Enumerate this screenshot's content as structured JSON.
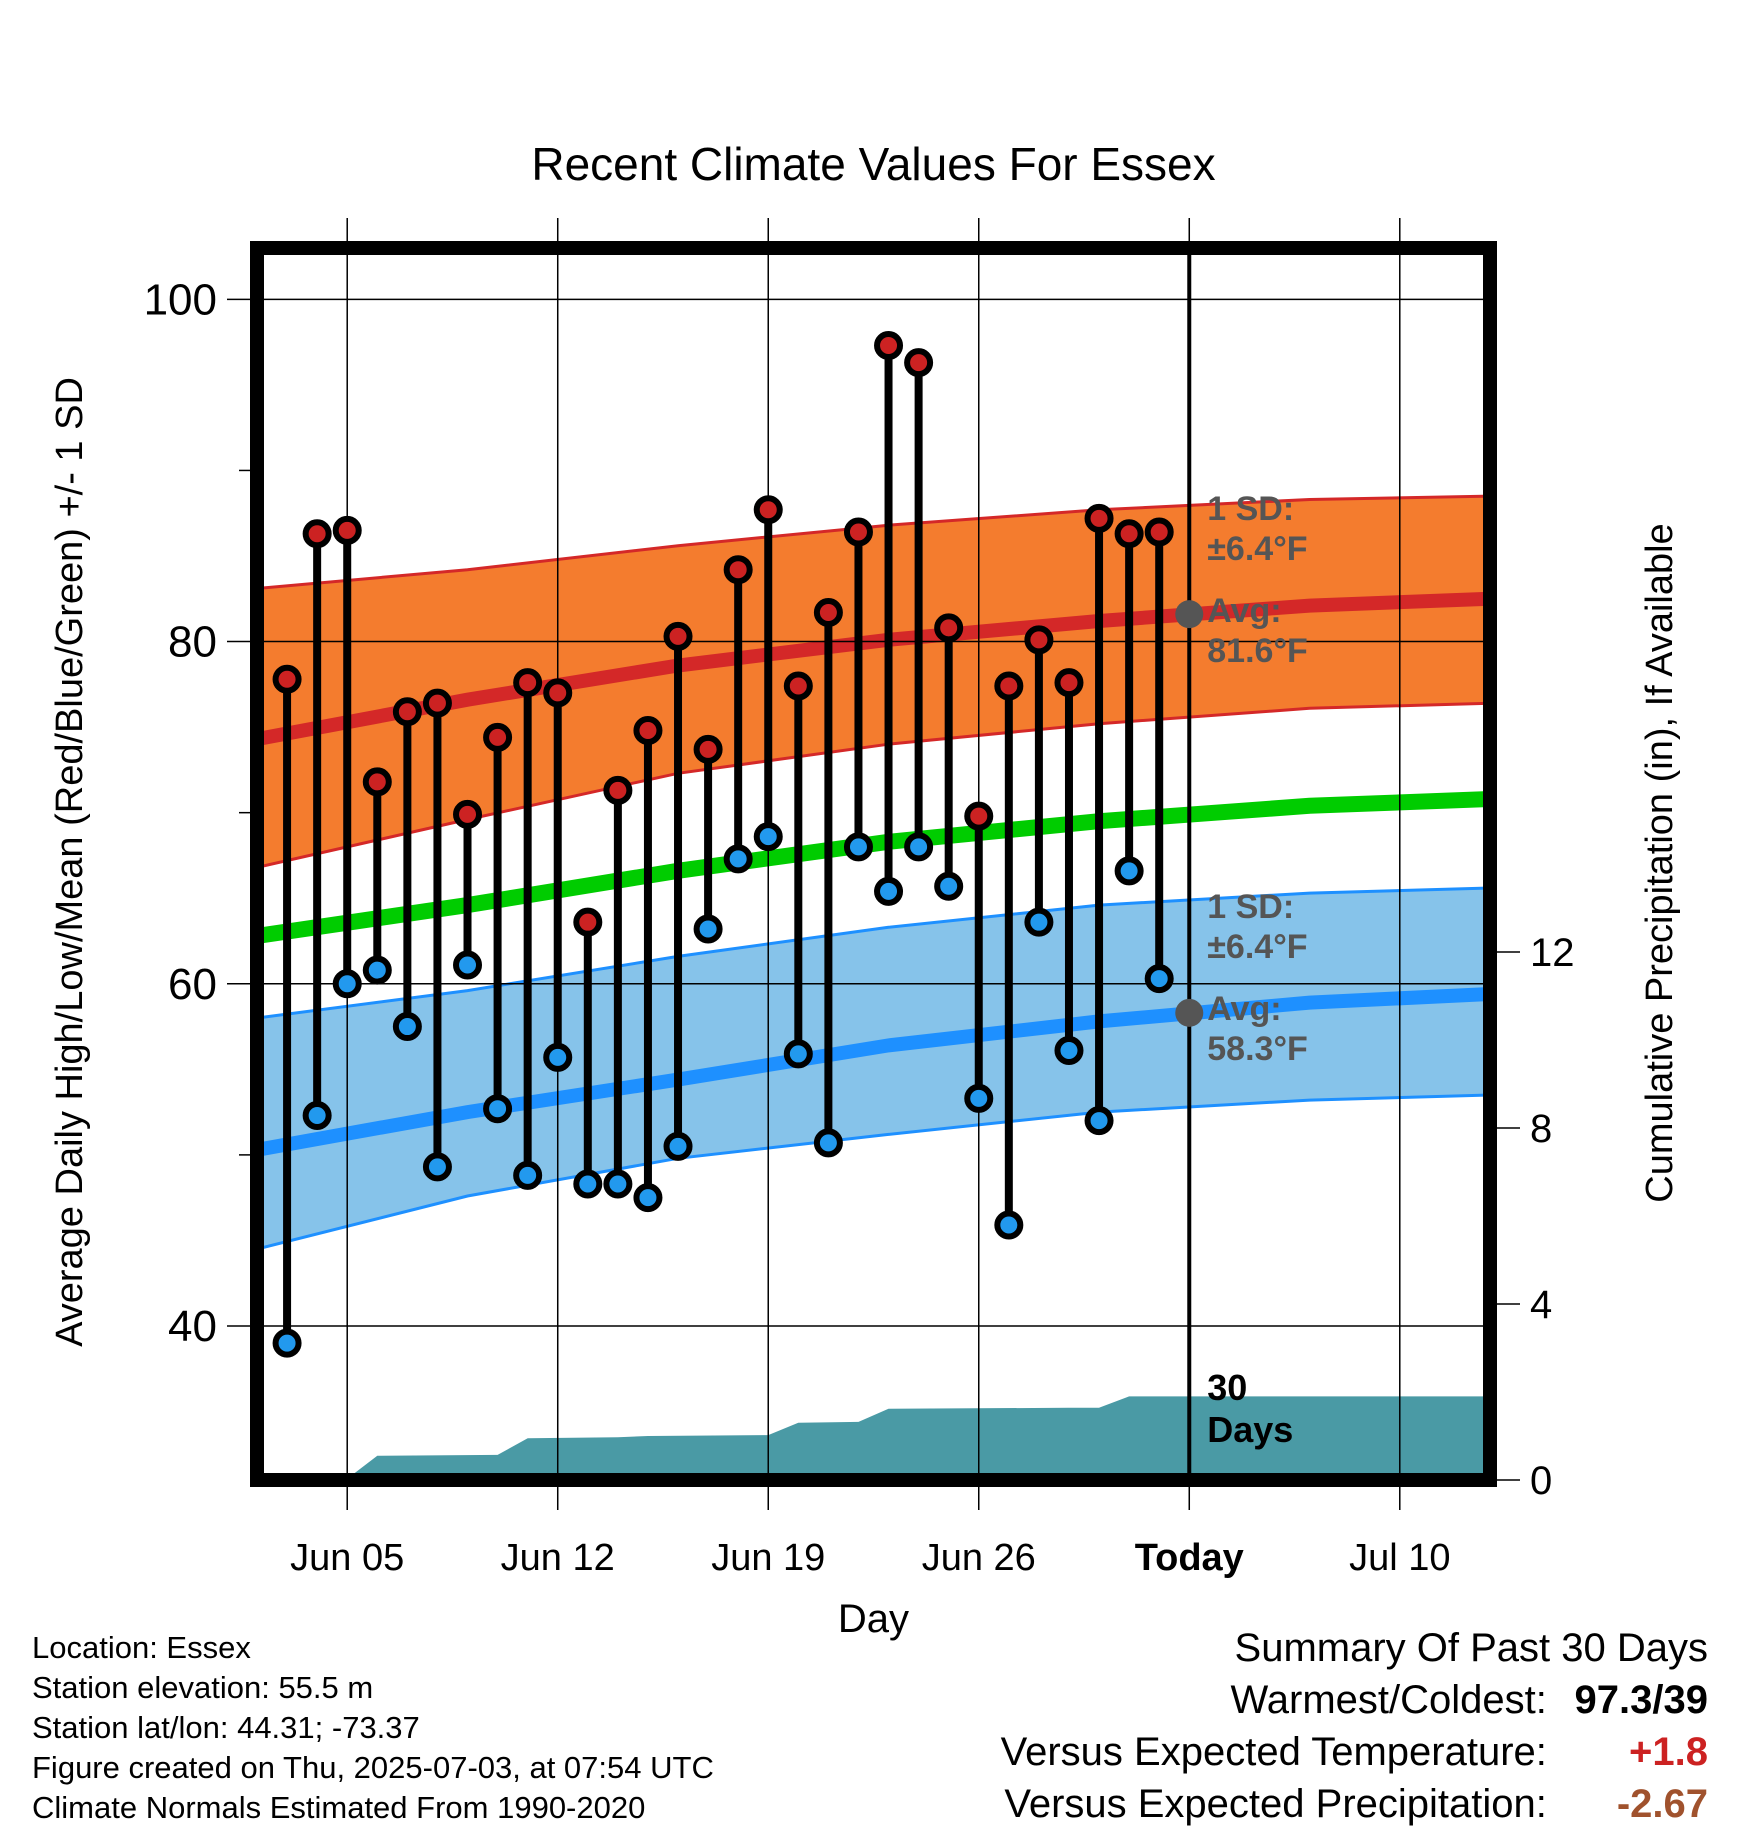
{
  "chart_data": {
    "type": "line",
    "title": "Recent Climate Values For Essex",
    "xlabel": "Day",
    "ylabel": "Average Daily High/Low/Mean (Red/Blue/Green) +/- 1 SD",
    "y2label": "Cumulative Precipitation (in), If Available",
    "x_range": [
      "2025-06-02",
      "2025-07-13"
    ],
    "ylim": [
      31,
      103
    ],
    "y2lim": [
      0,
      28
    ],
    "x_ticks": [
      {
        "date": "2025-06-05",
        "label": "Jun 05"
      },
      {
        "date": "2025-06-12",
        "label": "Jun 12"
      },
      {
        "date": "2025-06-19",
        "label": "Jun 19"
      },
      {
        "date": "2025-06-26",
        "label": "Jun 26"
      },
      {
        "date": "2025-07-03",
        "label": "Today"
      },
      {
        "date": "2025-07-10",
        "label": "Jul 10"
      }
    ],
    "y_ticks": [
      40,
      60,
      80,
      100
    ],
    "y2_ticks": [
      0,
      4,
      8,
      12
    ],
    "today": "2025-07-03",
    "normals": {
      "dates": [
        "2025-06-02",
        "2025-06-09",
        "2025-06-16",
        "2025-06-23",
        "2025-06-30",
        "2025-07-07",
        "2025-07-13"
      ],
      "high_mean": [
        74.3,
        76.6,
        78.6,
        80.1,
        81.2,
        82.1,
        82.5
      ],
      "high_sd_upper": [
        83.1,
        84.2,
        85.6,
        86.8,
        87.7,
        88.3,
        88.5
      ],
      "high_sd_lower": [
        66.8,
        69.6,
        72.3,
        74.0,
        75.2,
        76.1,
        76.4
      ],
      "low_mean": [
        50.3,
        52.5,
        54.4,
        56.4,
        57.8,
        58.9,
        59.4
      ],
      "low_sd_upper": [
        58.0,
        59.6,
        61.6,
        63.3,
        64.6,
        65.3,
        65.6
      ],
      "low_sd_lower": [
        44.5,
        47.6,
        49.8,
        51.2,
        52.5,
        53.2,
        53.5
      ],
      "mean": [
        62.8,
        64.6,
        66.6,
        68.3,
        69.5,
        70.4,
        70.8
      ]
    },
    "daily": {
      "dates": [
        "2025-06-03",
        "2025-06-04",
        "2025-06-05",
        "2025-06-06",
        "2025-06-07",
        "2025-06-08",
        "2025-06-09",
        "2025-06-10",
        "2025-06-11",
        "2025-06-12",
        "2025-06-13",
        "2025-06-14",
        "2025-06-15",
        "2025-06-16",
        "2025-06-17",
        "2025-06-18",
        "2025-06-19",
        "2025-06-20",
        "2025-06-21",
        "2025-06-22",
        "2025-06-23",
        "2025-06-24",
        "2025-06-25",
        "2025-06-26",
        "2025-06-27",
        "2025-06-28",
        "2025-06-29",
        "2025-06-30",
        "2025-07-01",
        "2025-07-02"
      ],
      "high": [
        77.8,
        86.3,
        86.5,
        71.8,
        75.9,
        76.4,
        69.9,
        74.4,
        77.6,
        77.0,
        63.6,
        71.3,
        74.8,
        80.3,
        73.7,
        84.2,
        87.7,
        77.4,
        81.7,
        86.4,
        97.3,
        96.3,
        80.8,
        69.8,
        77.4,
        80.1,
        77.6,
        87.2,
        86.3,
        86.4
      ],
      "low": [
        39.0,
        52.3,
        60.0,
        60.8,
        57.5,
        49.3,
        61.1,
        52.7,
        48.8,
        55.7,
        48.3,
        48.3,
        47.5,
        50.5,
        63.2,
        67.3,
        68.6,
        55.9,
        50.7,
        68.0,
        65.4,
        68.0,
        65.7,
        53.3,
        45.9,
        63.6,
        56.1,
        52.0,
        66.6,
        60.3
      ]
    },
    "precipitation": {
      "dates": [
        "2025-06-02",
        "2025-06-04",
        "2025-06-05",
        "2025-06-06",
        "2025-06-10",
        "2025-06-11",
        "2025-06-14",
        "2025-06-15",
        "2025-06-19",
        "2025-06-20",
        "2025-06-22",
        "2025-06-23",
        "2025-06-29",
        "2025-06-30",
        "2025-07-01",
        "2025-07-02",
        "2025-07-13"
      ],
      "cumulative": [
        0,
        0,
        0.03,
        0.55,
        0.57,
        0.95,
        0.97,
        1.0,
        1.02,
        1.3,
        1.32,
        1.62,
        1.64,
        1.64,
        1.9,
        1.9,
        1.9
      ]
    },
    "annotations": {
      "high_sd": [
        "1 SD:",
        "±6.4°F"
      ],
      "high_avg": [
        "Avg:",
        "81.6°F"
      ],
      "low_sd": [
        "1 SD:",
        "±6.4°F"
      ],
      "low_avg": [
        "Avg:",
        "58.3°F"
      ],
      "window": [
        "30",
        "Days"
      ],
      "high_avg_value": 81.6,
      "low_avg_value": 58.3
    },
    "colors": {
      "high_band": "#f47c2e",
      "high_line": "#d42828",
      "low_band": "#86c3ea",
      "low_line": "#1e90ff",
      "mean_line": "#00cc00",
      "precip": "#4a9aa5",
      "high_marker": "#cc2222",
      "low_marker": "#2299ee",
      "avg_marker": "#555555"
    },
    "grid": true
  },
  "footer": {
    "location": "Location: Essex",
    "elevation": "Station elevation: 55.5 m",
    "latlon": "Station lat/lon: 44.31; -73.37",
    "created": "Figure created on Thu, 2025-07-03, at 07:54 UTC",
    "normals": "Climate Normals Estimated From 1990-2020"
  },
  "summary": {
    "title": "Summary Of Past 30 Days",
    "warmest_coldest_label": "Warmest/Coldest:",
    "warmest": "97.3",
    "coldest": "39",
    "temp_label": "Versus Expected Temperature:",
    "temp_value": "+1.8",
    "temp_color": "#cc2222",
    "precip_label": "Versus Expected Precipitation:",
    "precip_value": "-2.67",
    "precip_color": "#a0522d"
  }
}
